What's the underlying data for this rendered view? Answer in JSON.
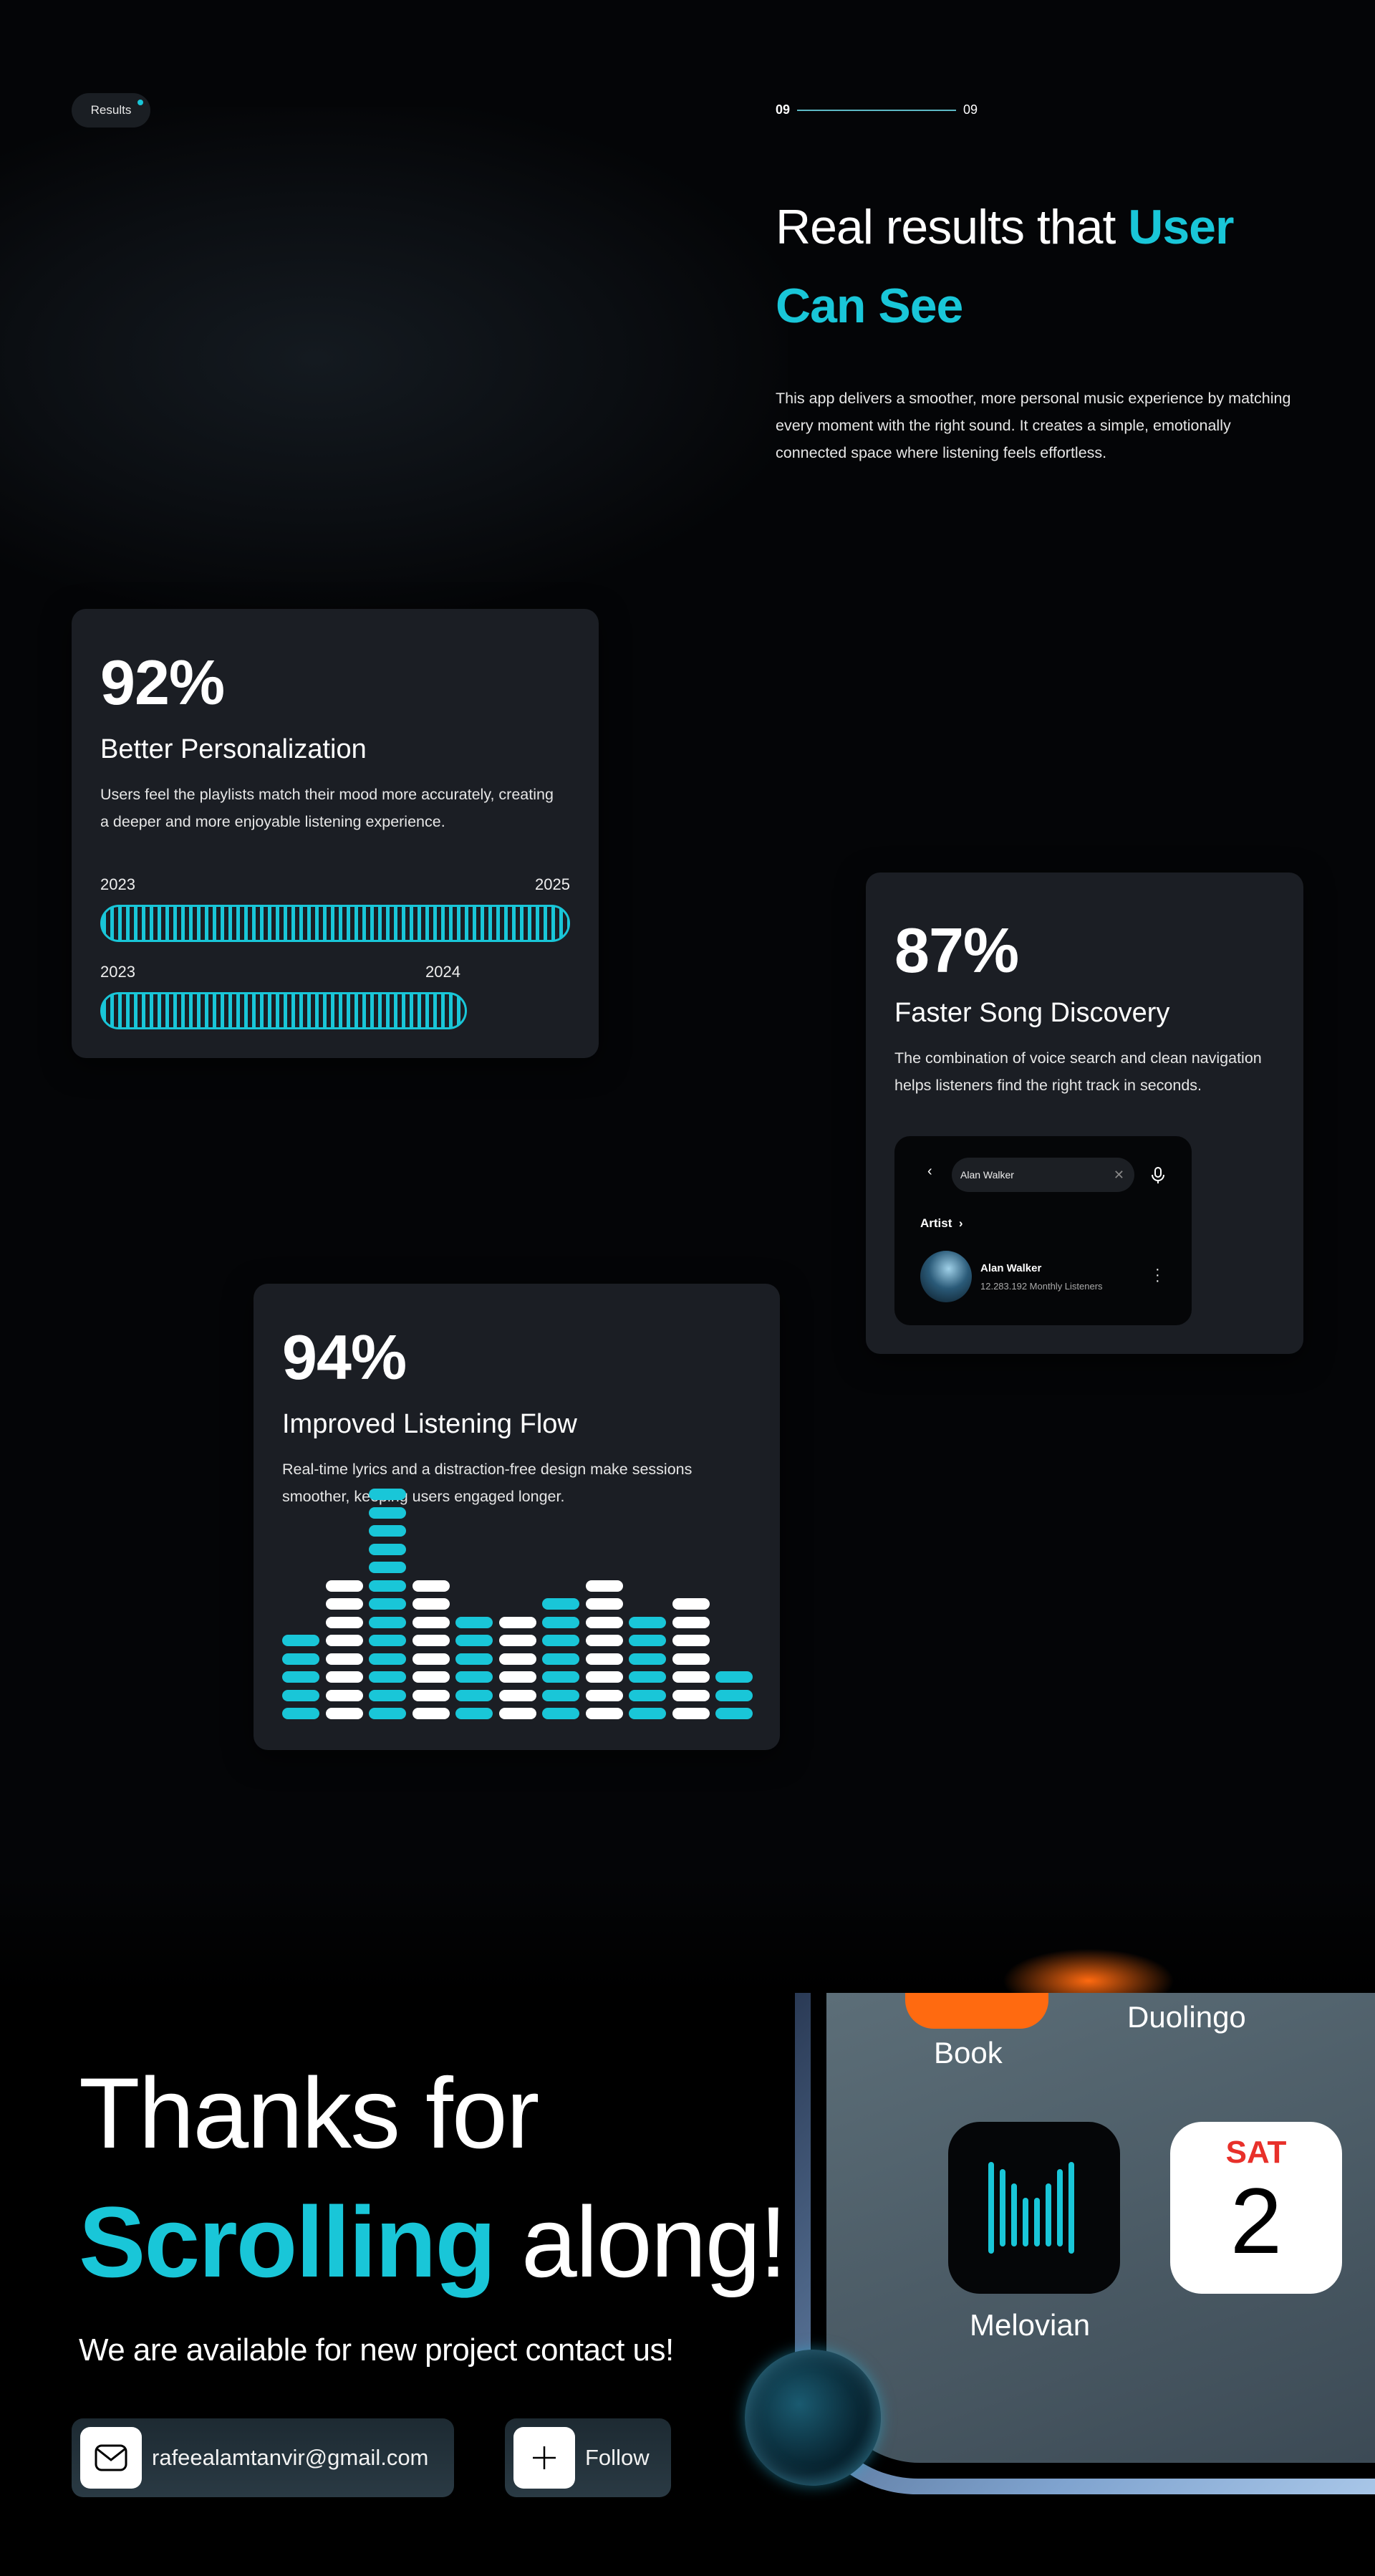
{
  "badge": {
    "label": "Results"
  },
  "pager": {
    "current": "09",
    "total": "09"
  },
  "headline": {
    "part1": "Real results that ",
    "accent1": "User",
    "accent2": "Can See"
  },
  "intro": "This app delivers a smoother, more personal music experience by matching every moment with the right sound. It creates a simple, emotionally connected space where listening feels effortless.",
  "colors": {
    "accent": "#19c6d8",
    "card": "#1b1e24",
    "background": "#040507"
  },
  "cards": [
    {
      "percent": "92%",
      "title": "Better Personalization",
      "desc": "Users feel the playlists match their mood more accurately, creating a deeper and more enjoyable listening experience.",
      "bars": [
        {
          "start": "2023",
          "end": "2025",
          "fill": 1.0
        },
        {
          "start": "2023",
          "end": "2024",
          "fill": 0.78
        }
      ]
    },
    {
      "percent": "87%",
      "title": "Faster Song Discovery",
      "desc": "The combination of voice search and clean navigation helps listeners find the right track in seconds.",
      "search": {
        "query": "Alan Walker",
        "section": "Artist",
        "artist": "Alan Walker",
        "listeners": "12.283.192 Monthly Listeners"
      }
    },
    {
      "percent": "94%",
      "title": "Improved Listening Flow",
      "desc": "Real-time lyrics and a distraction-free design make sessions smoother, keeping users engaged longer.",
      "equalizer": {
        "levels": [
          5,
          8,
          13,
          8,
          6,
          6,
          7,
          8,
          6,
          7,
          3
        ],
        "colors": [
          "#19c6d8",
          "#ffffff"
        ]
      }
    }
  ],
  "footer": {
    "line1": "Thanks for",
    "accent": "Scrolling",
    "line2rest": " along!",
    "subtitle": "We are available for new project contact us!",
    "email": "rafeealamtanvir@gmail.com",
    "follow": "Follow",
    "phone_apps": {
      "book": "Book",
      "duolingo": "Duolingo",
      "melovian": "Melovian",
      "calendar_day": "SAT",
      "calendar_date": "2"
    }
  }
}
